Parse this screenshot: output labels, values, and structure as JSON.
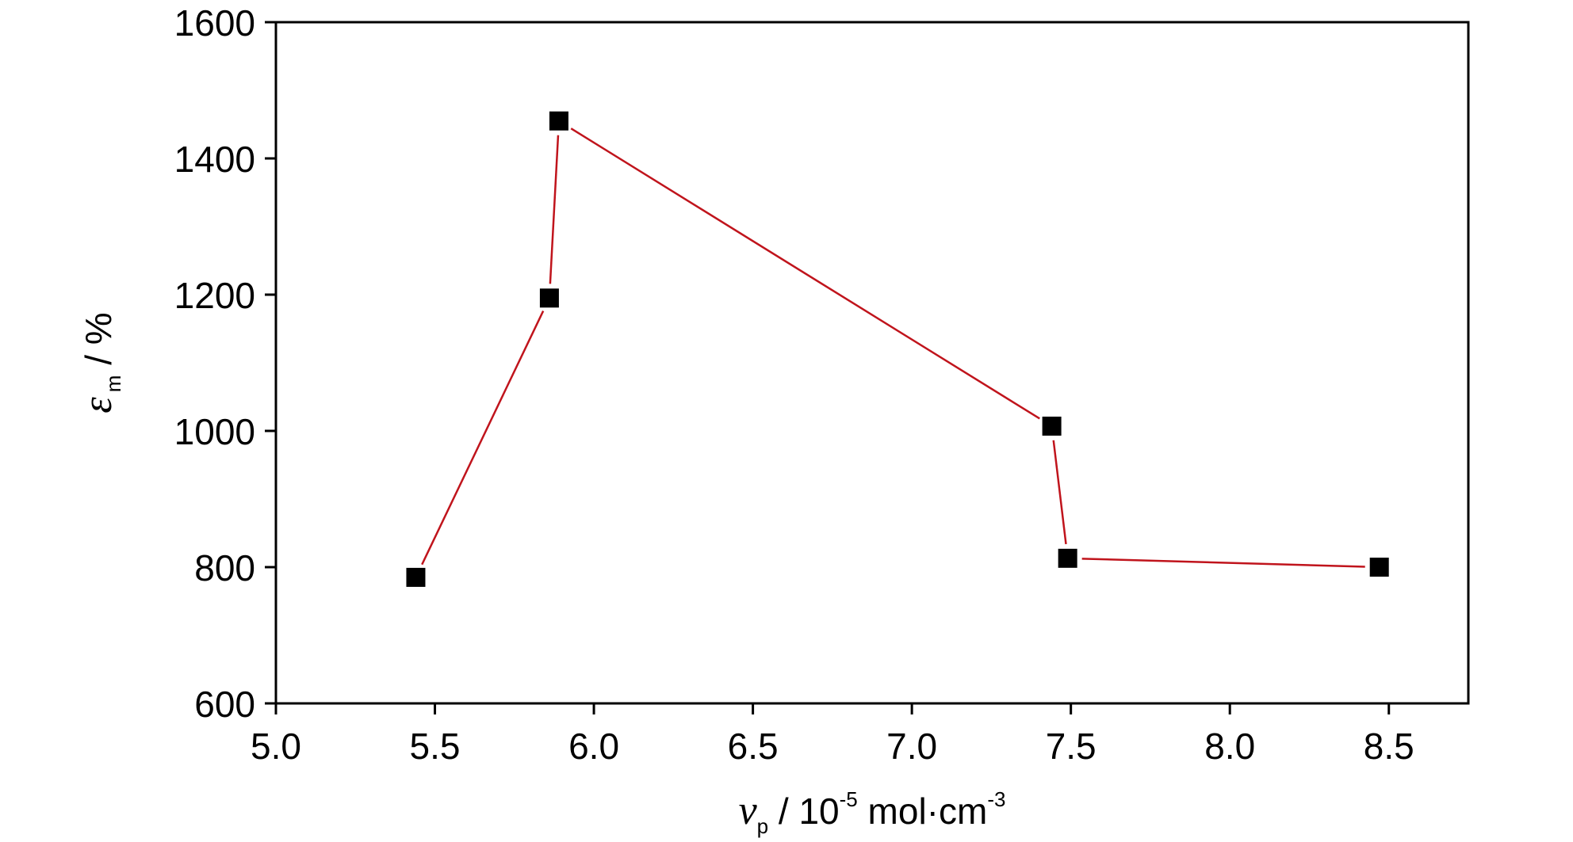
{
  "chart_data": {
    "type": "line",
    "xlabel": {
      "symbol": "v",
      "subscript": "p",
      "unit_prefix": " / 10",
      "exponent": "-5",
      "unit_suffix": " mol·cm",
      "unit_exponent": "-3"
    },
    "ylabel": {
      "symbol": "ε",
      "subscript": "m",
      "unit": " / %"
    },
    "xlim": [
      5.0,
      8.75
    ],
    "ylim": [
      600,
      1600
    ],
    "xticks": [
      "5.0",
      "5.5",
      "6.0",
      "6.5",
      "7.0",
      "7.5",
      "8.0",
      "8.5"
    ],
    "yticks": [
      "600",
      "800",
      "1000",
      "1200",
      "1400",
      "1600"
    ],
    "grid": false,
    "series": [
      {
        "line_color": "#c0141c",
        "marker": "square",
        "marker_color": "#000000",
        "points": [
          {
            "x": 5.44,
            "y": 785
          },
          {
            "x": 5.86,
            "y": 1195
          },
          {
            "x": 5.89,
            "y": 1455
          },
          {
            "x": 7.44,
            "y": 1007
          },
          {
            "x": 7.49,
            "y": 813
          },
          {
            "x": 8.47,
            "y": 800
          }
        ]
      }
    ]
  }
}
